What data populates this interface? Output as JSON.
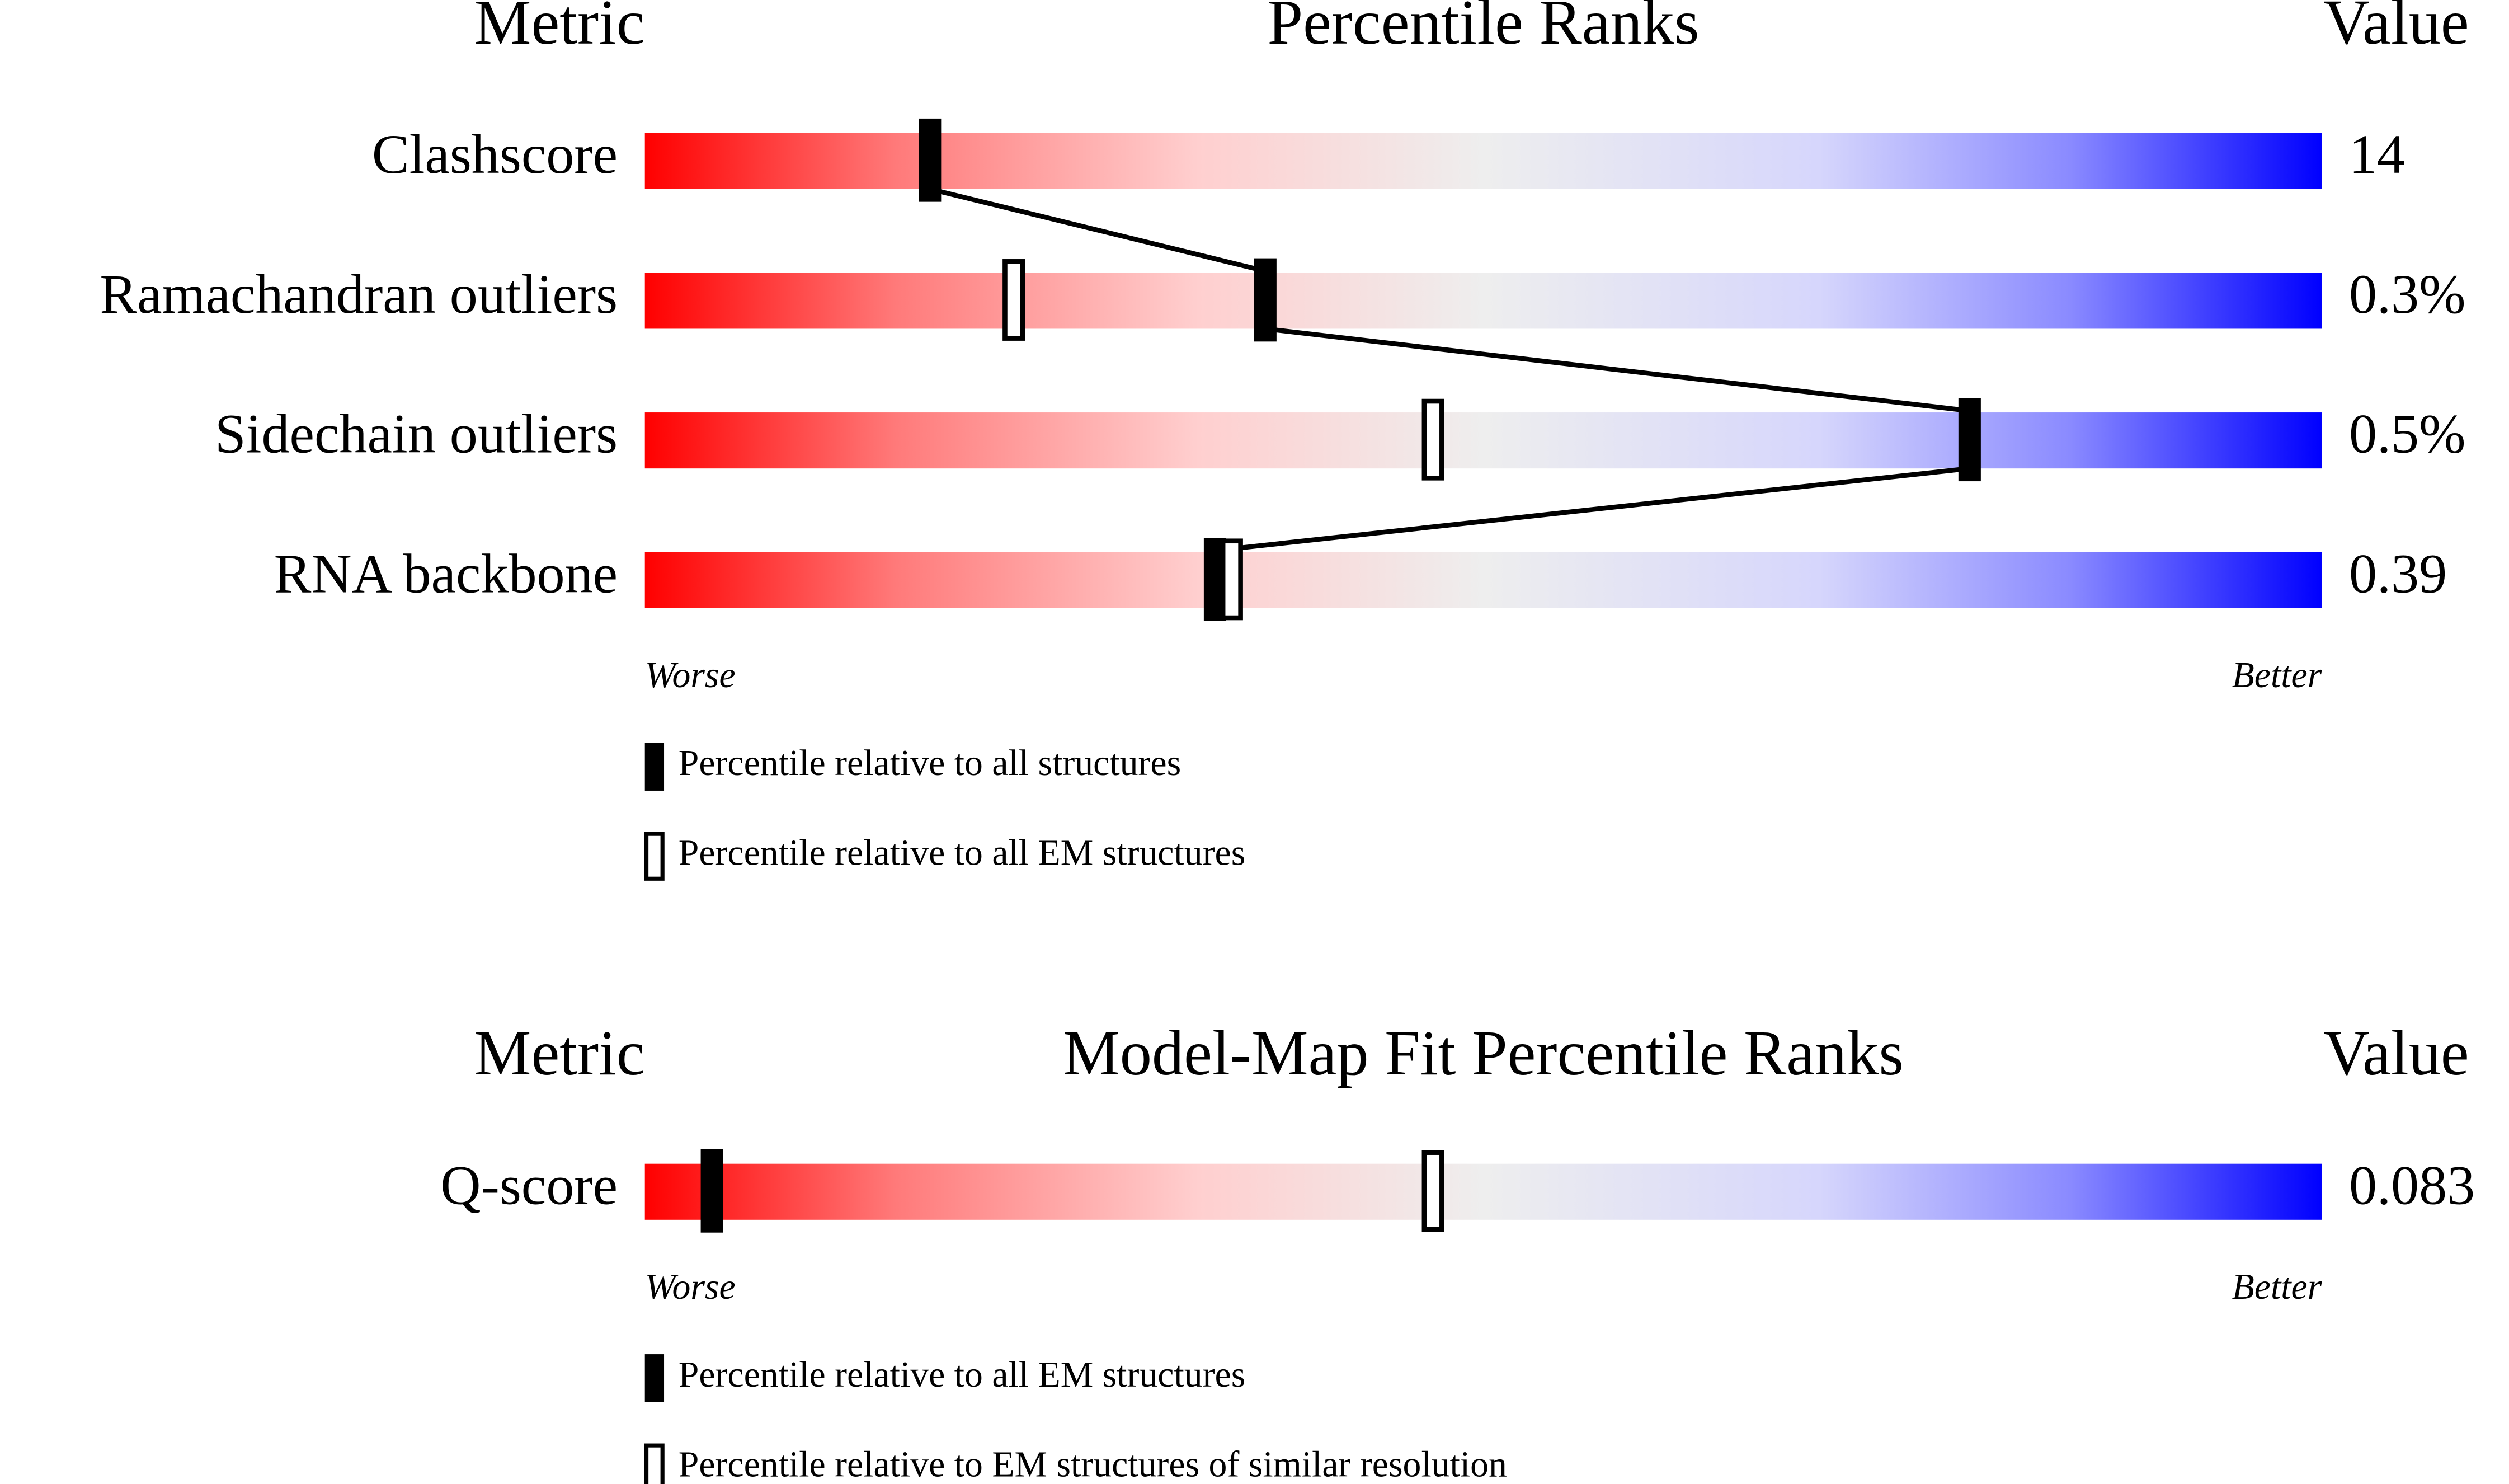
{
  "chart_data": [
    {
      "type": "slider",
      "title": "Percentile Ranks",
      "metric_header": "Metric",
      "value_header": "Value",
      "categories": [
        "Clashscore",
        "Ramachandran outliers",
        "Sidechain outliers",
        "RNA backbone"
      ],
      "metric_values": [
        "14",
        "0.3%",
        "0.5%",
        "0.39"
      ],
      "series": [
        {
          "name": "Percentile relative to all structures",
          "color": "#000000",
          "values": [
            17,
            37,
            79,
            34
          ]
        },
        {
          "name": "Percentile relative to all EM structures",
          "color": "#ffffff",
          "values": [
            null,
            22,
            47,
            35
          ]
        }
      ],
      "xlim": [
        0,
        100
      ],
      "x_label_low": "Worse",
      "x_label_high": "Better",
      "connect_lines": true
    },
    {
      "type": "slider",
      "title": "Model-Map Fit Percentile Ranks",
      "metric_header": "Metric",
      "value_header": "Value",
      "categories": [
        "Q-score"
      ],
      "metric_values": [
        "0.083"
      ],
      "series": [
        {
          "name": "Percentile relative to all EM structures",
          "color": "#000000",
          "values": [
            4
          ]
        },
        {
          "name": "Percentile relative to EM structures of similar resolution",
          "color": "#ffffff",
          "values": [
            47
          ]
        }
      ],
      "xlim": [
        0,
        100
      ],
      "x_label_low": "Worse",
      "x_label_high": "Better",
      "connect_lines": false
    }
  ]
}
